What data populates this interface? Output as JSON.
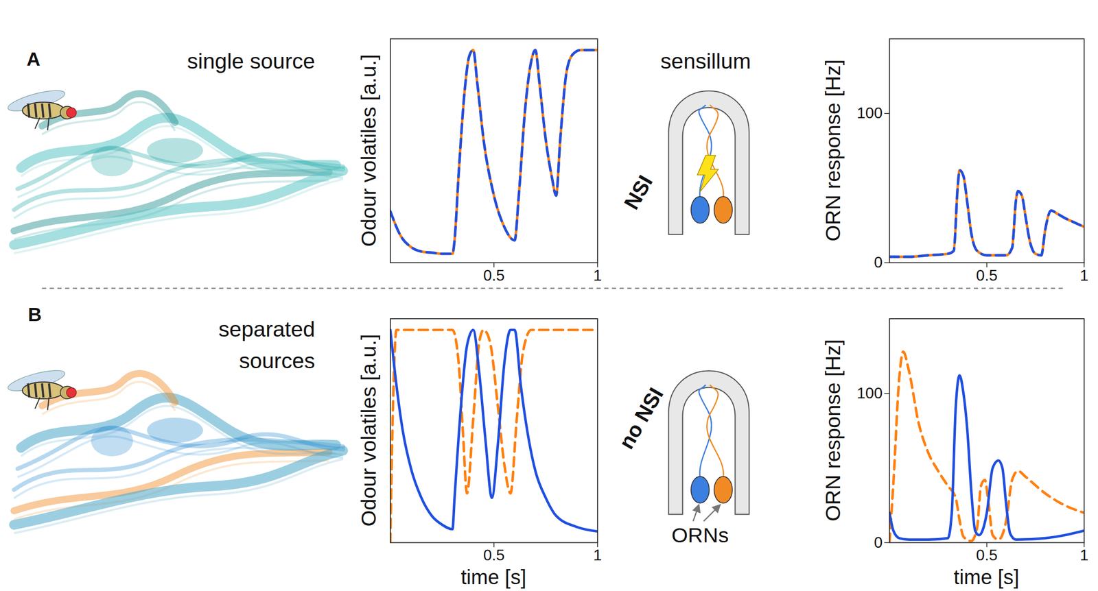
{
  "chart_data": [
    {
      "type": "line",
      "ylabel": "Odour volatiles [a.u.]",
      "xlim": [
        0,
        1
      ],
      "xticks": [
        0.5,
        1
      ],
      "ylim": [
        0,
        1
      ],
      "yticks": [],
      "tick_labels": "x",
      "series": [
        {
          "color": "#ff7f0e",
          "line_style": "solid",
          "x": [
            0,
            0.05,
            0.1,
            0.15,
            0.2,
            0.25,
            0.3,
            0.31,
            0.33,
            0.36,
            0.38,
            0.4,
            0.42,
            0.45,
            0.5,
            0.55,
            0.6,
            0.62,
            0.65,
            0.68,
            0.7,
            0.72,
            0.75,
            0.78,
            0.8,
            0.82,
            0.85,
            0.88,
            0.92,
            1
          ],
          "values": [
            0.23,
            0.12,
            0.07,
            0.05,
            0.045,
            0.04,
            0.04,
            0.1,
            0.4,
            0.78,
            0.92,
            0.95,
            0.8,
            0.55,
            0.3,
            0.16,
            0.1,
            0.3,
            0.68,
            0.9,
            0.95,
            0.8,
            0.55,
            0.38,
            0.3,
            0.55,
            0.85,
            0.93,
            0.95,
            0.95
          ]
        },
        {
          "color": "#1f4fe0",
          "line_style": "dashed",
          "x": [
            0,
            0.05,
            0.1,
            0.15,
            0.2,
            0.25,
            0.3,
            0.31,
            0.33,
            0.36,
            0.38,
            0.4,
            0.42,
            0.45,
            0.5,
            0.55,
            0.6,
            0.62,
            0.65,
            0.68,
            0.7,
            0.72,
            0.75,
            0.78,
            0.8,
            0.82,
            0.85,
            0.88,
            0.92,
            1
          ],
          "values": [
            0.23,
            0.12,
            0.07,
            0.05,
            0.045,
            0.04,
            0.04,
            0.1,
            0.4,
            0.78,
            0.92,
            0.95,
            0.8,
            0.55,
            0.3,
            0.16,
            0.1,
            0.3,
            0.68,
            0.9,
            0.95,
            0.8,
            0.55,
            0.38,
            0.3,
            0.55,
            0.85,
            0.93,
            0.95,
            0.95
          ]
        }
      ]
    },
    {
      "type": "line",
      "ylabel": "ORN response [Hz]",
      "xlim": [
        0,
        1
      ],
      "xticks": [
        0.5,
        1
      ],
      "ylim": [
        0,
        150
      ],
      "yticks": [
        0,
        100
      ],
      "series": [
        {
          "color": "#ff7f0e",
          "line_style": "solid",
          "x": [
            0,
            0.1,
            0.2,
            0.3,
            0.33,
            0.35,
            0.36,
            0.38,
            0.4,
            0.42,
            0.45,
            0.5,
            0.6,
            0.63,
            0.65,
            0.66,
            0.68,
            0.7,
            0.72,
            0.75,
            0.78,
            0.8,
            0.83,
            0.86,
            0.9,
            0.95,
            1
          ],
          "values": [
            4,
            4,
            5,
            6,
            8,
            50,
            62,
            58,
            40,
            20,
            8,
            5,
            5,
            10,
            42,
            48,
            45,
            30,
            15,
            6,
            5,
            22,
            35,
            33,
            30,
            27,
            24
          ]
        },
        {
          "color": "#1f4fe0",
          "line_style": "dashed",
          "x": [
            0,
            0.1,
            0.2,
            0.3,
            0.33,
            0.35,
            0.36,
            0.38,
            0.4,
            0.42,
            0.45,
            0.5,
            0.6,
            0.63,
            0.65,
            0.66,
            0.68,
            0.7,
            0.72,
            0.75,
            0.78,
            0.8,
            0.83,
            0.86,
            0.9,
            0.95,
            1
          ],
          "values": [
            4,
            4,
            5,
            6,
            8,
            50,
            62,
            58,
            40,
            20,
            8,
            5,
            5,
            10,
            42,
            48,
            45,
            30,
            15,
            6,
            5,
            22,
            35,
            33,
            30,
            27,
            24
          ]
        }
      ]
    },
    {
      "type": "line",
      "ylabel": "Odour volatiles [a.u.]",
      "xlabel": "time [s]",
      "xlim": [
        0,
        1
      ],
      "xticks": [
        0.5,
        1
      ],
      "ylim": [
        0,
        1
      ],
      "yticks": [],
      "tick_labels": "x",
      "series": [
        {
          "color": "#ff7f0e",
          "line_style": "dashed",
          "x": [
            0,
            0.01,
            0.03,
            0.3,
            0.33,
            0.35,
            0.37,
            0.4,
            0.43,
            0.45,
            0.48,
            0.52,
            0.55,
            0.58,
            0.61,
            0.64,
            0.68,
            1
          ],
          "values": [
            0,
            0.5,
            0.95,
            0.95,
            0.8,
            0.5,
            0.22,
            0.55,
            0.9,
            0.95,
            0.9,
            0.6,
            0.35,
            0.22,
            0.55,
            0.85,
            0.95,
            0.95
          ]
        },
        {
          "color": "#1f4fe0",
          "line_style": "solid",
          "x": [
            0,
            0.03,
            0.06,
            0.1,
            0.15,
            0.2,
            0.25,
            0.3,
            0.31,
            0.34,
            0.37,
            0.4,
            0.43,
            0.46,
            0.49,
            0.52,
            0.55,
            0.58,
            0.6,
            0.63,
            0.67,
            0.7,
            0.75,
            0.8,
            0.9,
            1
          ],
          "values": [
            0.95,
            0.7,
            0.5,
            0.33,
            0.2,
            0.12,
            0.08,
            0.06,
            0.2,
            0.6,
            0.88,
            0.95,
            0.75,
            0.45,
            0.2,
            0.45,
            0.8,
            0.95,
            0.95,
            0.7,
            0.45,
            0.32,
            0.2,
            0.12,
            0.07,
            0.05
          ]
        }
      ]
    },
    {
      "type": "line",
      "ylabel": "ORN response [Hz]",
      "xlabel": "time [s]",
      "xlim": [
        0,
        1
      ],
      "xticks": [
        0.5,
        1
      ],
      "ylim": [
        0,
        150
      ],
      "yticks": [
        0,
        100
      ],
      "series": [
        {
          "color": "#ff7f0e",
          "line_style": "dashed",
          "x": [
            0,
            0.02,
            0.05,
            0.07,
            0.1,
            0.15,
            0.2,
            0.25,
            0.3,
            0.34,
            0.36,
            0.38,
            0.42,
            0.45,
            0.47,
            0.49,
            0.51,
            0.53,
            0.56,
            0.6,
            0.63,
            0.66,
            0.7,
            0.8,
            0.9,
            1
          ],
          "values": [
            0,
            40,
            110,
            128,
            115,
            80,
            60,
            48,
            38,
            30,
            15,
            4,
            1,
            10,
            38,
            42,
            25,
            5,
            2,
            15,
            42,
            48,
            44,
            33,
            25,
            20
          ]
        },
        {
          "color": "#1f4fe0",
          "line_style": "solid",
          "x": [
            0,
            0.02,
            0.05,
            0.1,
            0.2,
            0.3,
            0.32,
            0.34,
            0.36,
            0.38,
            0.4,
            0.42,
            0.44,
            0.46,
            0.5,
            0.53,
            0.56,
            0.58,
            0.6,
            0.62,
            0.65,
            0.8,
            0.9,
            1
          ],
          "values": [
            20,
            8,
            3,
            2,
            2,
            3,
            20,
            90,
            112,
            100,
            75,
            35,
            8,
            5,
            20,
            50,
            55,
            50,
            25,
            6,
            2,
            3,
            5,
            8
          ]
        }
      ]
    }
  ],
  "panels": [
    {
      "letter": "A",
      "source_label": "single source",
      "sensillum_label": "sensillum",
      "coupling": "NSI"
    },
    {
      "letter": "B",
      "source_label": "separated sources",
      "coupling": "no NSI",
      "neuron_label": "ORNs"
    }
  ]
}
